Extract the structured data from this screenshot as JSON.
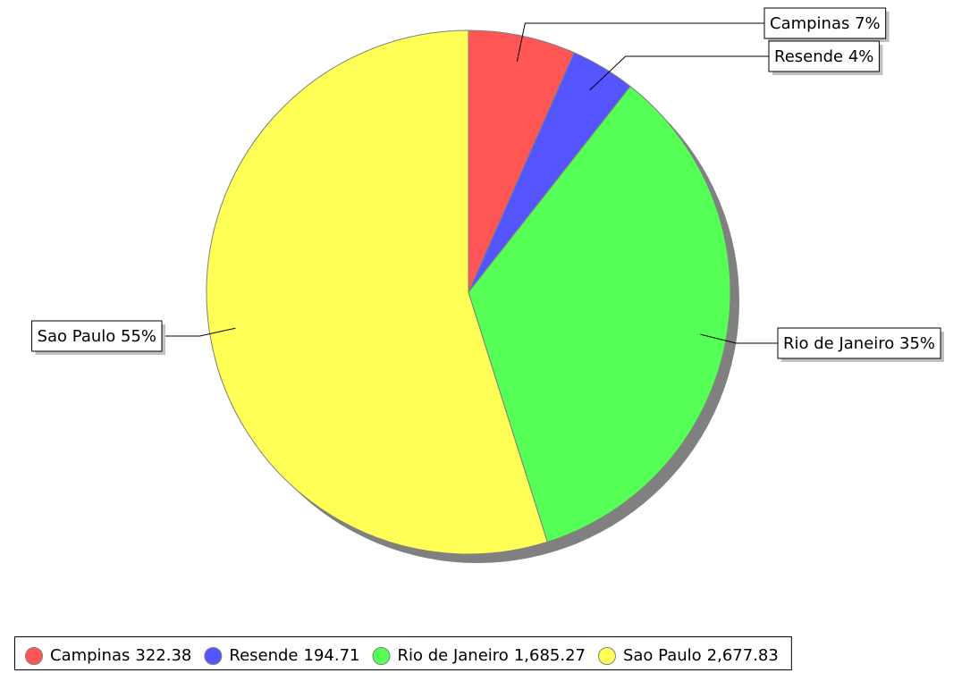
{
  "chart_data": {
    "type": "pie",
    "categories": [
      "Campinas",
      "Resende",
      "Rio de Janeiro",
      "Sao Paulo"
    ],
    "values": [
      322.38,
      194.71,
      1685.27,
      2677.83
    ],
    "value_labels": [
      "322.38",
      "194.71",
      "1,685.27",
      "2,677.83"
    ],
    "slice_labels": [
      "Campinas 7%",
      "Resende 4%",
      "Rio de Janeiro 35%",
      "Sao Paulo 55%"
    ],
    "colors": [
      "#ff5555",
      "#5555ff",
      "#55ff55",
      "#ffff55"
    ],
    "legend": "bottom"
  }
}
